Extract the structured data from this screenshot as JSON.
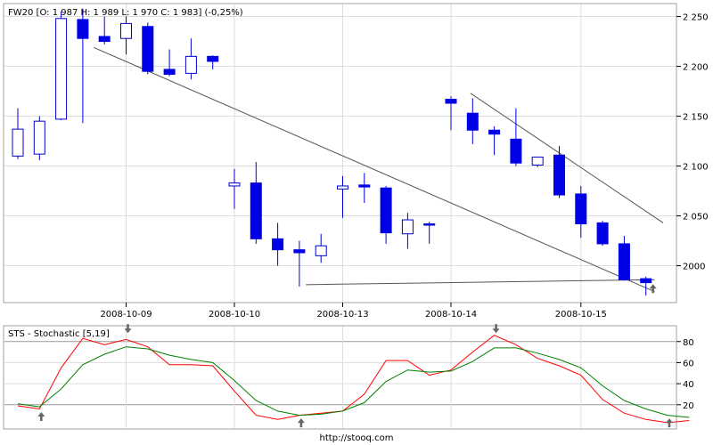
{
  "footer": "http://stooq.com",
  "chart_data": [
    {
      "type": "candlestick",
      "title": "FW20 [O: 1 987  H: 1 989  L: 1 970  C: 1 983] (-0,25%)",
      "x_labels": [
        {
          "index": 5,
          "label": "2008-10-09"
        },
        {
          "index": 10,
          "label": "2008-10-10"
        },
        {
          "index": 15,
          "label": "2008-10-13"
        },
        {
          "index": 20,
          "label": "2008-10-14"
        },
        {
          "index": 26,
          "label": "2008-10-15"
        }
      ],
      "y_ticks": [
        2000,
        2050,
        2100,
        2150,
        2200,
        2250
      ],
      "y_tick_labels": [
        "2000",
        "2 050",
        "2 100",
        "2 150",
        "2 200",
        "2 250"
      ],
      "ylim": [
        1963,
        2263
      ],
      "axis_side": "right",
      "grid": true,
      "colors": {
        "down": "#0000e6",
        "up_fill": "#ffffff",
        "up_stroke": "#0000cc",
        "trend": "#555555",
        "grid": "#dddddd",
        "arrow": "#666666"
      },
      "candles": [
        {
          "o": 2110,
          "h": 2158,
          "l": 2107,
          "c": 2137
        },
        {
          "o": 2112,
          "h": 2150,
          "l": 2106,
          "c": 2145
        },
        {
          "o": 2147,
          "h": 2255,
          "l": 2146,
          "c": 2248
        },
        {
          "o": 2247,
          "h": 2258,
          "l": 2143,
          "c": 2228
        },
        {
          "o": 2230,
          "h": 2250,
          "l": 2222,
          "c": 2225
        },
        {
          "o": 2228,
          "h": 2250,
          "l": 2212,
          "c": 2243
        },
        {
          "o": 2240,
          "h": 2244,
          "l": 2192,
          "c": 2195
        },
        {
          "o": 2197,
          "h": 2217,
          "l": 2190,
          "c": 2192
        },
        {
          "o": 2193,
          "h": 2228,
          "l": 2187,
          "c": 2210
        },
        {
          "o": 2210,
          "h": 2211,
          "l": 2197,
          "c": 2205
        },
        {
          "o": 2080,
          "h": 2097,
          "l": 2057,
          "c": 2083
        },
        {
          "o": 2083,
          "h": 2104,
          "l": 2022,
          "c": 2027
        },
        {
          "o": 2027,
          "h": 2043,
          "l": 2000,
          "c": 2016
        },
        {
          "o": 2016,
          "h": 2025,
          "l": 1979,
          "c": 2013
        },
        {
          "o": 2010,
          "h": 2032,
          "l": 2003,
          "c": 2020
        },
        {
          "o": 2077,
          "h": 2090,
          "l": 2048,
          "c": 2080
        },
        {
          "o": 2081,
          "h": 2093,
          "l": 2063,
          "c": 2079
        },
        {
          "o": 2078,
          "h": 2080,
          "l": 2022,
          "c": 2033
        },
        {
          "o": 2032,
          "h": 2053,
          "l": 2017,
          "c": 2046
        },
        {
          "o": 2042,
          "h": 2044,
          "l": 2022,
          "c": 2041
        },
        {
          "o": 2167,
          "h": 2170,
          "l": 2136,
          "c": 2163
        },
        {
          "o": 2153,
          "h": 2168,
          "l": 2122,
          "c": 2136
        },
        {
          "o": 2136,
          "h": 2140,
          "l": 2111,
          "c": 2132
        },
        {
          "o": 2127,
          "h": 2158,
          "l": 2100,
          "c": 2103
        },
        {
          "o": 2101,
          "h": 2109,
          "l": 2099,
          "c": 2109
        },
        {
          "o": 2111,
          "h": 2120,
          "l": 2068,
          "c": 2071
        },
        {
          "o": 2072,
          "h": 2080,
          "l": 2028,
          "c": 2042
        },
        {
          "o": 2043,
          "h": 2045,
          "l": 2020,
          "c": 2022
        },
        {
          "o": 2022,
          "h": 2030,
          "l": 1985,
          "c": 1986
        },
        {
          "o": 1987,
          "h": 1989,
          "l": 1970,
          "c": 1983
        }
      ],
      "trendlines": [
        {
          "from": [
            3.5,
            2219
          ],
          "to": [
            29.4,
            1974
          ]
        },
        {
          "from": [
            13.3,
            1981
          ],
          "to": [
            29.4,
            1986
          ]
        },
        {
          "from": [
            20.9,
            2173
          ],
          "to": [
            29.8,
            2043
          ]
        }
      ],
      "arrows": [
        {
          "index": 29,
          "value": 1978,
          "direction": "up"
        }
      ]
    },
    {
      "type": "line",
      "title": "STS - Stochastic [5,19]",
      "y_ticks": [
        20,
        40,
        60,
        80
      ],
      "ylim": [
        -3,
        95
      ],
      "axis_side": "right",
      "reference_lines": [
        20,
        80
      ],
      "series": [
        {
          "color": "#ff0000",
          "values": [
            19,
            16,
            55,
            83,
            77,
            82,
            75,
            58,
            58,
            57,
            33,
            10,
            6,
            10,
            12,
            14,
            30,
            62,
            62,
            48,
            53,
            70,
            86,
            77,
            64,
            57,
            48,
            25,
            12,
            6,
            3,
            5
          ]
        },
        {
          "color": "#008000",
          "values": [
            21,
            18,
            35,
            58,
            68,
            75,
            73,
            67,
            63,
            60,
            43,
            24,
            14,
            10,
            11,
            14,
            22,
            42,
            53,
            51,
            52,
            61,
            74,
            74,
            69,
            63,
            55,
            38,
            24,
            16,
            10,
            8
          ]
        }
      ],
      "arrows": [
        {
          "index": 1,
          "value": 13,
          "direction": "up"
        },
        {
          "index": 5,
          "value": 88,
          "direction": "down"
        },
        {
          "index": 13,
          "value": 7,
          "direction": "up"
        },
        {
          "index": 22,
          "value": 88,
          "direction": "down"
        },
        {
          "index": 30,
          "value": 7,
          "direction": "up"
        }
      ]
    }
  ]
}
